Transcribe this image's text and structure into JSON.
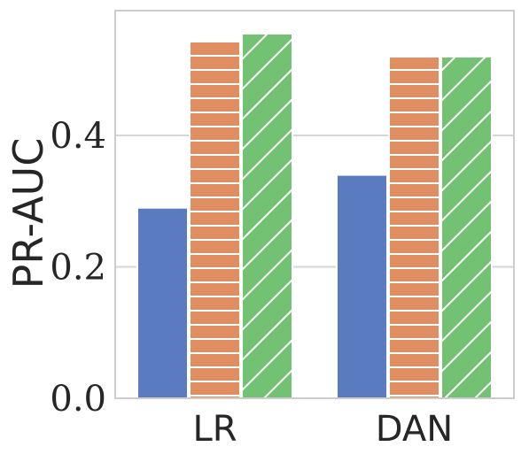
{
  "chart_data": {
    "type": "bar",
    "categories": [
      "LR",
      "DAN"
    ],
    "series": [
      {
        "values": [
          0.29,
          0.34
        ],
        "color": "#5a7bc0",
        "hatch": "none"
      },
      {
        "values": [
          0.545,
          0.52
        ],
        "color": "#e08f62",
        "hatch": "horizontal"
      },
      {
        "values": [
          0.555,
          0.52
        ],
        "color": "#73c172",
        "hatch": "diagonal"
      }
    ],
    "title": "",
    "xlabel": "",
    "ylabel": "PR-AUC",
    "ylim": [
      0,
      0.59
    ],
    "yticks": [
      0.0,
      0.2,
      0.4
    ],
    "ytick_labels": [
      "0.0",
      "0.2",
      "0.4"
    ],
    "grid": "horizontal",
    "legend": "none"
  }
}
